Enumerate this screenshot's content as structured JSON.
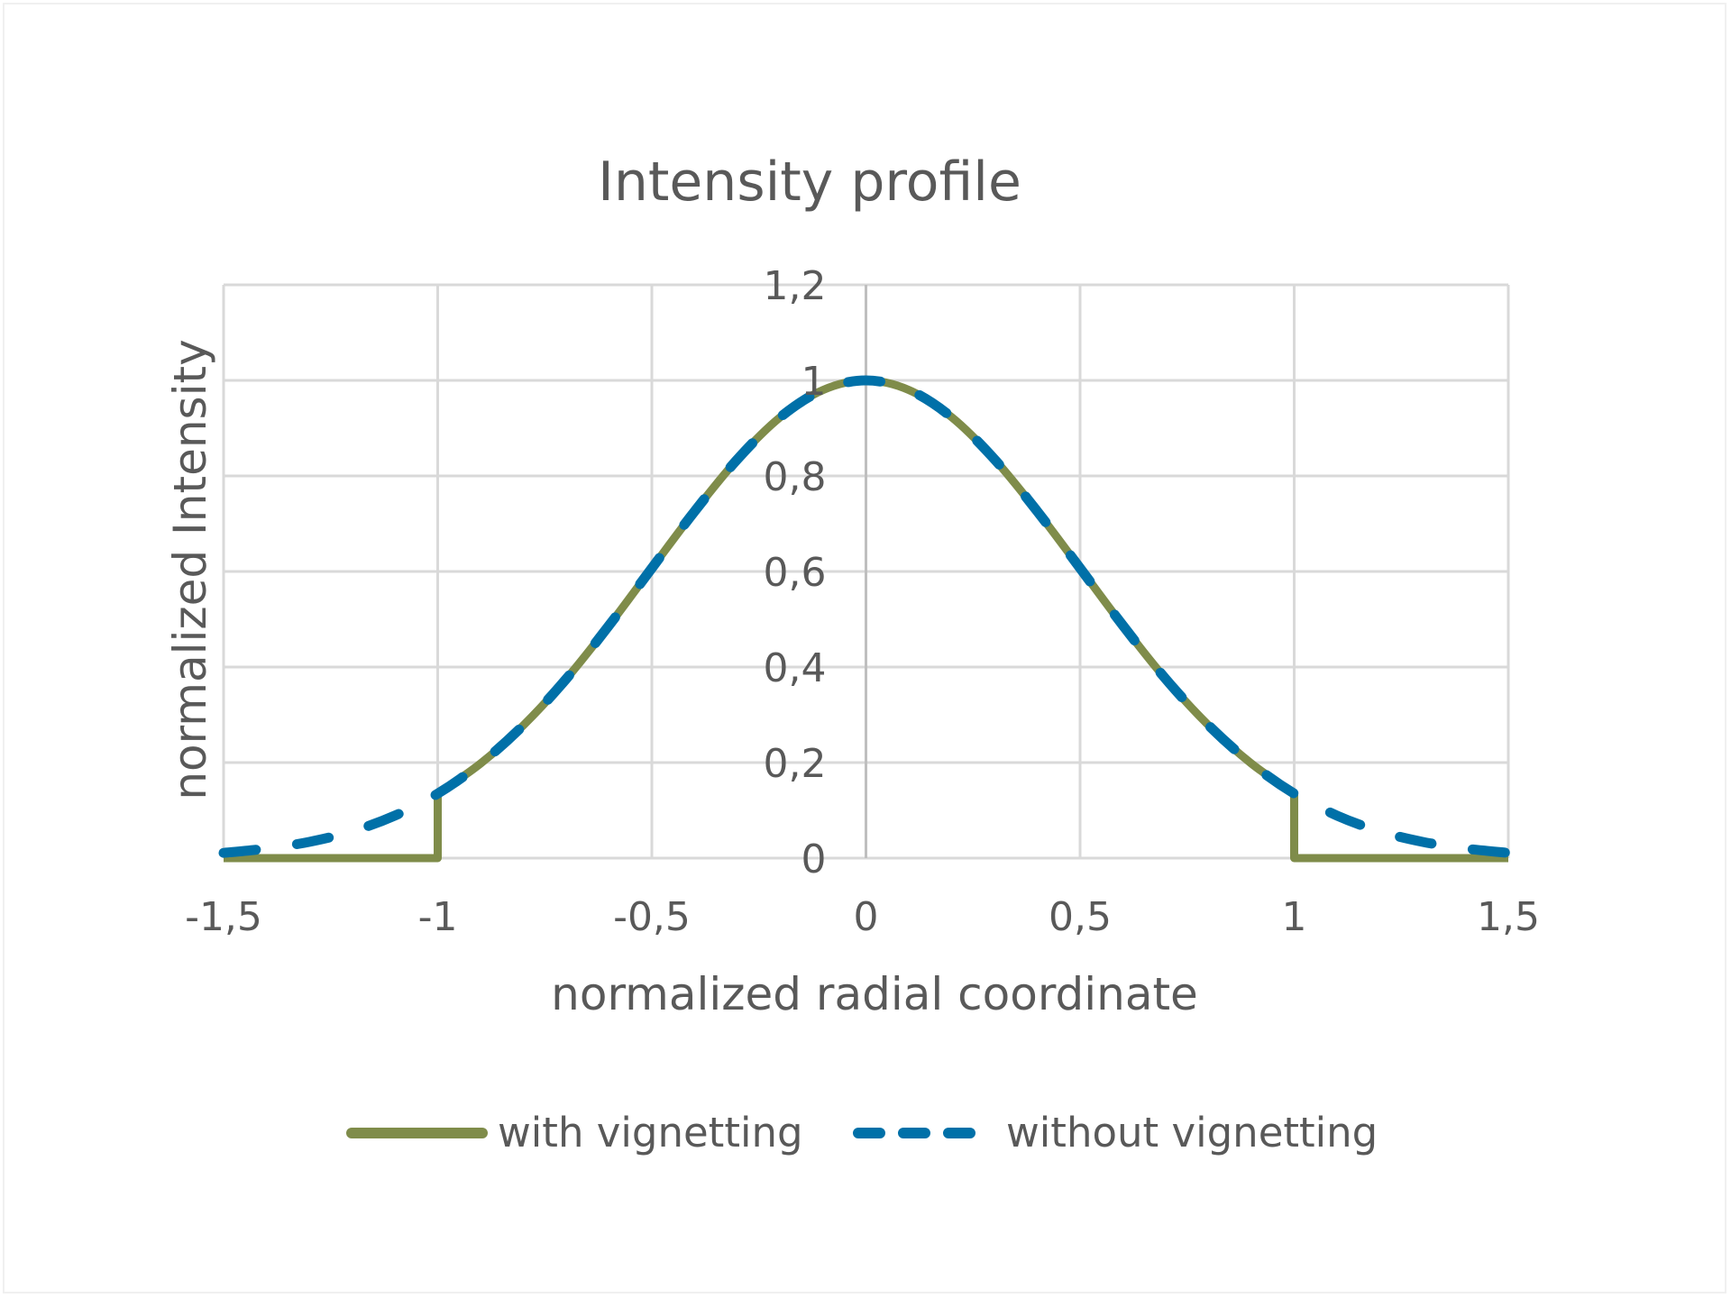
{
  "chart_data": {
    "type": "line",
    "title": "Intensity profile",
    "xlabel": "normalized radial coordinate",
    "ylabel": "normalized Intensity",
    "xlim": [
      -1.5,
      1.5
    ],
    "ylim": [
      0,
      1.2
    ],
    "x_ticks": [
      -1.5,
      -1,
      -0.5,
      0,
      0.5,
      1,
      1.5
    ],
    "x_tick_labels": [
      "-1,5",
      "-1",
      "-0,5",
      "0",
      "0,5",
      "1",
      "1,5"
    ],
    "y_ticks": [
      0,
      0.2,
      0.4,
      0.6,
      0.8,
      1,
      1.2
    ],
    "y_tick_labels": [
      "0",
      "0,2",
      "0,4",
      "0,6",
      "0,8",
      "1",
      "1,2"
    ],
    "grid": true,
    "legend_position": "bottom",
    "series": [
      {
        "name": "with vignetting",
        "color": "#7f8c4a",
        "style": "solid",
        "x": [
          -1.5,
          -1.0,
          -1.0,
          -0.9,
          -0.8,
          -0.7,
          -0.6,
          -0.5,
          -0.4,
          -0.3,
          -0.2,
          -0.1,
          0.0,
          0.1,
          0.2,
          0.3,
          0.4,
          0.5,
          0.6,
          0.7,
          0.8,
          0.9,
          1.0,
          1.0,
          1.5
        ],
        "y": [
          0,
          0,
          0.135,
          0.198,
          0.278,
          0.375,
          0.487,
          0.607,
          0.726,
          0.835,
          0.923,
          0.98,
          1.0,
          0.98,
          0.923,
          0.835,
          0.726,
          0.607,
          0.487,
          0.375,
          0.278,
          0.198,
          0.135,
          0,
          0
        ]
      },
      {
        "name": "without vignetting",
        "color": "#0070a8",
        "style": "dashed",
        "x": [
          -1.5,
          -1.4,
          -1.3,
          -1.2,
          -1.1,
          -1.0,
          -0.9,
          -0.8,
          -0.7,
          -0.6,
          -0.5,
          -0.4,
          -0.3,
          -0.2,
          -0.1,
          0.0,
          0.1,
          0.2,
          0.3,
          0.4,
          0.5,
          0.6,
          0.7,
          0.8,
          0.9,
          1.0,
          1.1,
          1.2,
          1.3,
          1.4,
          1.5
        ],
        "y": [
          0.011,
          0.02,
          0.034,
          0.056,
          0.089,
          0.135,
          0.198,
          0.278,
          0.375,
          0.487,
          0.607,
          0.726,
          0.835,
          0.923,
          0.98,
          1.0,
          0.98,
          0.923,
          0.835,
          0.726,
          0.607,
          0.487,
          0.375,
          0.278,
          0.198,
          0.135,
          0.089,
          0.056,
          0.034,
          0.02,
          0.011
        ]
      }
    ]
  }
}
